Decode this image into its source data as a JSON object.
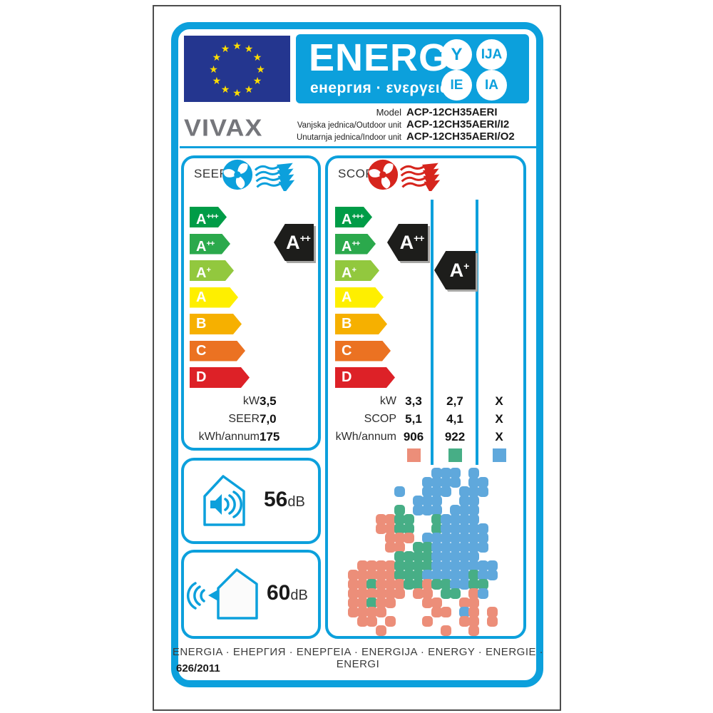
{
  "colors": {
    "accent": "#0CA0DC",
    "fan_red": "#D6251D",
    "dark": "#1D1D1B",
    "eu_blue": "#24368F",
    "star": "#FFDD00",
    "zone_warm": "#EC8E79",
    "zone_average": "#47AE86",
    "zone_cold": "#5FA8DC"
  },
  "header": {
    "energ_title": "ENERG",
    "energ_subtitle": "енергия · ενεργεια",
    "badges": [
      "Y",
      "IJA",
      "IE",
      "IA"
    ],
    "brand": "VIVAX",
    "model_rows": [
      {
        "label": "Model",
        "value": "ACP-12CH35AERI"
      },
      {
        "label": "Vanjska jednica/Outdoor unit",
        "value": "ACP-12CH35AERI/I2"
      },
      {
        "label": "Unutarnja jednica/Indoor unit",
        "value": "ACP-12CH35AERI/O2"
      }
    ]
  },
  "class_scale": [
    {
      "label": "A",
      "sup": "+++",
      "color": "#009C47"
    },
    {
      "label": "A",
      "sup": "++",
      "color": "#2BA94C"
    },
    {
      "label": "A",
      "sup": "+",
      "color": "#92C83E"
    },
    {
      "label": "A",
      "sup": "",
      "color": "#FEEF00"
    },
    {
      "label": "B",
      "sup": "",
      "color": "#F6B000"
    },
    {
      "label": "C",
      "sup": "",
      "color": "#EB7222"
    },
    {
      "label": "D",
      "sup": "",
      "color": "#DD2127"
    }
  ],
  "seer": {
    "title": "SEER",
    "rating": {
      "label": "A",
      "sup": "++"
    },
    "rows": [
      {
        "label": "kW",
        "value": "3,5"
      },
      {
        "label": "SEER",
        "value": "7,0"
      },
      {
        "label": "kWh/annum",
        "value": "175"
      }
    ]
  },
  "scop": {
    "title": "SCOP",
    "ratings": [
      {
        "label": "A",
        "sup": "++"
      },
      {
        "label": "A",
        "sup": "+"
      }
    ],
    "rows": [
      {
        "label": "kW",
        "values": [
          "3,3",
          "2,7",
          "X"
        ]
      },
      {
        "label": "SCOP",
        "values": [
          "5,1",
          "4,1",
          "X"
        ]
      },
      {
        "label": "kWh/annum",
        "values": [
          "906",
          "922",
          "X"
        ]
      }
    ],
    "legend_colors": [
      "#EC8E79",
      "#47AE86",
      "#5FA8DC"
    ]
  },
  "noise": [
    {
      "value": "56",
      "unit": "dB"
    },
    {
      "value": "60",
      "unit": "dB"
    }
  ],
  "map": {
    "palette": {
      "S": "#EC8E79",
      "G": "#47AE86",
      "B": "#5FA8DC"
    },
    "rows": [
      ".........BBB.B....",
      "........BBBB.BB...",
      ".....B..BBB.BBB...",
      ".......BBB..BB....",
      ".....G.BBB.BBB....",
      "...SSGG..GBBBB....",
      "...SSGG..GBBBBB...",
      "....SSS.BBBBBBB...",
      "....SS.GGBBBBBB...",
      ".....GGGGBBBBB....",
      ".SSSSGGGGBBBBBBB..",
      "SSSSSGGGBBBBBGBB..",
      "SSGSSSGGSGGBBGG...",
      "SSSSSS.SS.GG.SB...",
      "SSGSS...SS..SS....",
      "SSSS.....SS.BS.S..",
      ".SS.S...S...SS.S..",
      "...S......S..S...."
    ]
  },
  "footer": {
    "languages": "ENERGIA · ЕНЕРГИЯ · ΕΝΕΡΓΕΙΑ · ENERGIJA · ENERGY · ENERGIE · ENERGI",
    "regulation": "626/2011"
  }
}
